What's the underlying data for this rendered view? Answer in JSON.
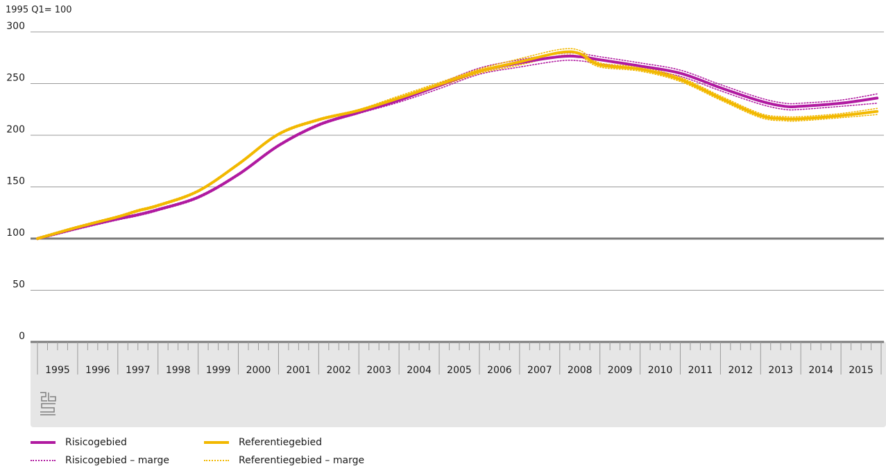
{
  "chart_data": {
    "type": "line",
    "unit_label": "1995 Q1= 100",
    "ylim": [
      0,
      300
    ],
    "yticks": [
      0,
      50,
      100,
      150,
      200,
      250,
      300
    ],
    "grid": true,
    "x_range": [
      1995,
      2016
    ],
    "x_categories": [
      "1995",
      "1996",
      "1997",
      "1998",
      "1999",
      "2000",
      "2001",
      "2002",
      "2003",
      "2004",
      "2005",
      "2006",
      "2007",
      "2008",
      "2009",
      "2010",
      "2011",
      "2012",
      "2013",
      "2014",
      "2015"
    ],
    "reference_line": 100,
    "legend_placement": "bottom-left",
    "series": [
      {
        "name": "Risicogebied",
        "color": "#b01aa0",
        "style": "solid",
        "x": [
          1995.0,
          1996.0,
          1997.0,
          1997.5,
          1998.0,
          1999.0,
          2000.0,
          2001.0,
          2002.0,
          2003.0,
          2004.0,
          2005.0,
          2006.0,
          2007.0,
          2008.0,
          2008.5,
          2009.0,
          2010.0,
          2011.0,
          2012.0,
          2013.0,
          2013.6,
          2014.0,
          2015.0,
          2015.9
        ],
        "values": [
          100,
          110,
          119,
          123,
          128,
          140,
          162,
          190,
          210,
          222,
          234,
          248,
          262,
          270,
          276,
          276,
          273,
          267,
          260,
          246,
          233,
          228,
          228,
          231,
          236
        ]
      },
      {
        "name": "Referentiegebied",
        "color": "#f2b800",
        "style": "solid",
        "x": [
          1995.0,
          1996.0,
          1997.0,
          1997.5,
          1998.0,
          1999.0,
          2000.0,
          2001.0,
          2002.0,
          2003.0,
          2004.0,
          2005.0,
          2006.0,
          2007.0,
          2008.0,
          2008.5,
          2009.0,
          2010.0,
          2011.0,
          2012.0,
          2013.0,
          2013.6,
          2014.0,
          2015.0,
          2015.9
        ],
        "values": [
          100,
          111,
          121,
          127,
          132,
          146,
          172,
          201,
          215,
          224,
          236,
          249,
          262,
          271,
          280,
          279,
          268,
          264,
          254,
          236,
          219,
          216,
          216,
          219,
          223
        ]
      },
      {
        "name": "Risicogebied – marge",
        "color": "#b01aa0",
        "style": "dotted",
        "x": [
          1995.0,
          1996.0,
          1997.0,
          1997.5,
          1998.0,
          1999.0,
          2000.0,
          2001.0,
          2002.0,
          2003.0,
          2004.0,
          2005.0,
          2006.0,
          2007.0,
          2008.0,
          2008.5,
          2009.0,
          2010.0,
          2011.0,
          2012.0,
          2013.0,
          2013.6,
          2014.0,
          2015.0,
          2015.9
        ],
        "upper": [
          101,
          111,
          120,
          124,
          129,
          141,
          163,
          191,
          211,
          223,
          235,
          250,
          265,
          273,
          279,
          279,
          276,
          270,
          263,
          249,
          236,
          231,
          231,
          234,
          240
        ],
        "lower": [
          99,
          109,
          118,
          122,
          127,
          139,
          161,
          189,
          209,
          221,
          232,
          245,
          259,
          266,
          272,
          272,
          269,
          264,
          257,
          243,
          230,
          225,
          225,
          228,
          231
        ]
      },
      {
        "name": "Referentiegebied – marge",
        "color": "#f2b800",
        "style": "dotted",
        "x": [
          1995.0,
          1996.0,
          1997.0,
          1997.5,
          1998.0,
          1999.0,
          2000.0,
          2001.0,
          2002.0,
          2003.0,
          2004.0,
          2005.0,
          2006.0,
          2007.0,
          2008.0,
          2008.5,
          2009.0,
          2010.0,
          2011.0,
          2012.0,
          2013.0,
          2013.6,
          2014.0,
          2015.0,
          2015.9
        ],
        "upper": [
          101,
          112,
          122,
          128,
          133,
          147,
          173,
          202,
          216,
          225,
          238,
          251,
          264,
          274,
          283,
          282,
          270,
          266,
          256,
          238,
          221,
          218,
          218,
          221,
          226
        ],
        "lower": [
          99,
          110,
          120,
          126,
          131,
          145,
          171,
          200,
          214,
          223,
          234,
          247,
          260,
          268,
          277,
          276,
          266,
          262,
          252,
          234,
          217,
          214,
          214,
          217,
          220
        ]
      }
    ]
  },
  "legend": [
    {
      "label": "Risicogebied",
      "color": "#b01aa0",
      "style": "solid"
    },
    {
      "label": "Referentiegebied",
      "color": "#f2b800",
      "style": "solid"
    },
    {
      "label": "Risicogebied – marge",
      "color": "#b01aa0",
      "style": "dotted"
    },
    {
      "label": "Referentiegebied – marge",
      "color": "#f2b800",
      "style": "dotted"
    }
  ],
  "colors": {
    "grid": "#9a9a9a",
    "axis_band": "#e6e6e6",
    "baseline": "#7a7a7a",
    "logo": "#7f7f7f"
  },
  "logo_icon": "cbs-logo-icon"
}
